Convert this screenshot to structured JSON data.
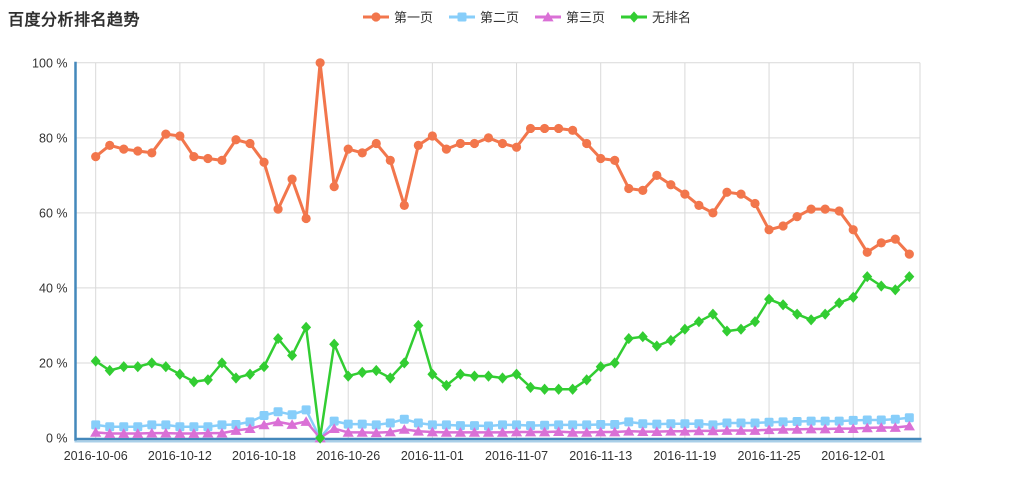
{
  "page": {
    "title": "百度分析排名趋势"
  },
  "legend": {
    "items": [
      {
        "label": "第一页",
        "color": "#f2764c",
        "symbol": "circle"
      },
      {
        "label": "第二页",
        "color": "#87cefa",
        "symbol": "square"
      },
      {
        "label": "第三页",
        "color": "#da70d6",
        "symbol": "triangle"
      },
      {
        "label": "无排名",
        "color": "#32cd32",
        "symbol": "diamond"
      }
    ]
  },
  "axes": {
    "y_ticks": [
      0,
      20,
      40,
      60,
      80,
      100
    ],
    "y_tick_labels": [
      "0 %",
      "20 %",
      "40 %",
      "60 %",
      "80 %",
      "100 %"
    ],
    "x_tick_labels": [
      "2016-10-06",
      "2016-10-12",
      "2016-10-18",
      "2016-10-26",
      "2016-11-01",
      "2016-11-07",
      "2016-11-13",
      "2016-11-19",
      "2016-11-25",
      "2016-12-01"
    ],
    "axis_line_color": "#4488bb",
    "axis_line_light_color": "#a9cfe8",
    "grid_color": "#d9d9d9",
    "label_color": "#333333"
  },
  "chart_data": {
    "type": "line",
    "title": "百度分析排名趋势",
    "ylabel": "",
    "xlabel": "",
    "ylim": [
      0,
      100
    ],
    "y_ticks": [
      0,
      20,
      40,
      60,
      80,
      100
    ],
    "grid": true,
    "legend_position": "top-center",
    "point_count": 59,
    "x_tick_labels": [
      "2016-10-06",
      "2016-10-12",
      "2016-10-18",
      "2016-10-26",
      "2016-11-01",
      "2016-11-07",
      "2016-11-13",
      "2016-11-19",
      "2016-11-25",
      "2016-12-01"
    ],
    "x_tick_point_indices": [
      0,
      6,
      12,
      18,
      24,
      30,
      36,
      42,
      48,
      54
    ],
    "series": [
      {
        "name": "第一页",
        "color": "#f2764c",
        "symbol": "circle",
        "values": [
          75,
          78,
          77,
          76.5,
          76,
          81,
          80.5,
          75,
          74.5,
          74,
          79.5,
          78.5,
          73.5,
          61,
          69,
          58.5,
          100,
          67,
          77,
          76,
          78.5,
          74,
          62,
          78,
          80.5,
          77,
          78.5,
          78.5,
          80,
          78.5,
          77.5,
          82.5,
          82.5,
          82.5,
          82,
          78.5,
          74.5,
          74,
          66.5,
          66,
          70,
          67.5,
          65,
          62,
          60,
          65.5,
          65,
          62.5,
          55.5,
          56.5,
          59,
          61,
          61,
          60.5,
          55.5,
          49.5,
          52,
          53,
          49
        ]
      },
      {
        "name": "第二页",
        "color": "#87cefa",
        "symbol": "square",
        "values": [
          3.5,
          3,
          3,
          3,
          3.5,
          3.5,
          3,
          3,
          3,
          3.5,
          3.6,
          4.3,
          6,
          7,
          6.2,
          7.5,
          0,
          4.5,
          3.7,
          3.7,
          3.5,
          4,
          5,
          4,
          3.5,
          3.5,
          3.3,
          3.3,
          3.2,
          3.5,
          3.5,
          3.3,
          3.4,
          3.5,
          3.5,
          3.5,
          3.6,
          3.6,
          4.3,
          3.8,
          3.7,
          3.8,
          3.8,
          3.8,
          3.5,
          4,
          4,
          4,
          4.2,
          4.3,
          4.4,
          4.5,
          4.5,
          4.5,
          4.7,
          4.8,
          4.8,
          5,
          5.4
        ]
      },
      {
        "name": "第三页",
        "color": "#da70d6",
        "symbol": "triangle",
        "values": [
          1.5,
          1.2,
          1.2,
          1.2,
          1.3,
          1.3,
          1.2,
          1.2,
          1.3,
          1.3,
          2,
          2.5,
          3.5,
          4.3,
          3.6,
          4.4,
          0,
          2.5,
          1.5,
          1.5,
          1.4,
          1.6,
          2.3,
          1.8,
          1.6,
          1.5,
          1.5,
          1.5,
          1.5,
          1.5,
          1.6,
          1.6,
          1.6,
          1.7,
          1.5,
          1.5,
          1.6,
          1.6,
          1.8,
          1.7,
          1.7,
          1.8,
          1.8,
          1.9,
          1.9,
          2,
          2,
          2,
          2.2,
          2.3,
          2.3,
          2.4,
          2.4,
          2.5,
          2.5,
          2.7,
          2.8,
          2.8,
          3.2
        ]
      },
      {
        "name": "无排名",
        "color": "#32cd32",
        "symbol": "diamond",
        "values": [
          20.5,
          18,
          19,
          19,
          20,
          19,
          17,
          15,
          15.5,
          20,
          16,
          17,
          19,
          26.5,
          22,
          29.5,
          0,
          25,
          16.5,
          17.5,
          18,
          16,
          20,
          30,
          17,
          14,
          17,
          16.5,
          16.5,
          16,
          17,
          13.5,
          13,
          13,
          13,
          15.5,
          19,
          20,
          26.5,
          27,
          24.5,
          26,
          29,
          31,
          33,
          28.5,
          29,
          31,
          37,
          35.5,
          33,
          31.5,
          33,
          36,
          37.5,
          43,
          40.5,
          39.5,
          43
        ]
      }
    ]
  }
}
